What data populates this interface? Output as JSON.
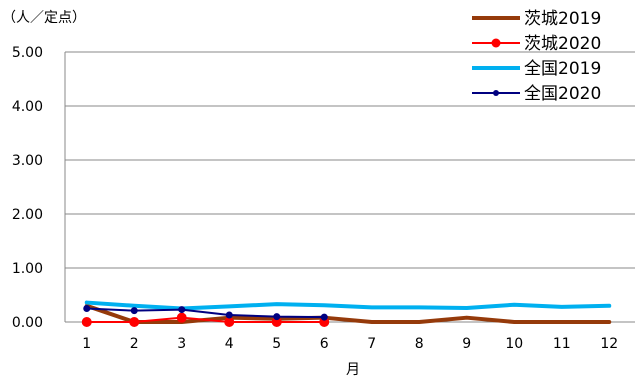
{
  "chart_data": {
    "type": "line",
    "unit_label": "（人／定点）",
    "xlabel": "月",
    "ylabel": "",
    "categories": [
      "1",
      "2",
      "3",
      "4",
      "5",
      "6",
      "7",
      "8",
      "9",
      "10",
      "11",
      "12"
    ],
    "y_ticks": [
      "0.00",
      "1.00",
      "2.00",
      "3.00",
      "4.00",
      "5.00"
    ],
    "ylim": [
      0,
      5
    ],
    "grid": true,
    "legend_position": "top-right",
    "series": [
      {
        "name": "茨城2019",
        "color": "#953A0A",
        "marker": "none",
        "values": [
          0.3,
          0.0,
          0.0,
          0.08,
          0.06,
          0.08,
          0.0,
          0.0,
          0.08,
          0.0,
          0.0,
          0.0
        ]
      },
      {
        "name": "茨城2020",
        "color": "#FF0000",
        "marker": "circle",
        "values": [
          0.0,
          0.0,
          0.08,
          0.0,
          0.0,
          0.0,
          null,
          null,
          null,
          null,
          null,
          null
        ]
      },
      {
        "name": "全国2019",
        "color": "#00B0F0",
        "marker": "none",
        "values": [
          0.36,
          0.3,
          0.25,
          0.29,
          0.33,
          0.31,
          0.27,
          0.27,
          0.26,
          0.32,
          0.28,
          0.3
        ]
      },
      {
        "name": "全国2020",
        "color": "#000080",
        "marker": "circle",
        "values": [
          0.25,
          0.21,
          0.23,
          0.13,
          0.1,
          0.09,
          null,
          null,
          null,
          null,
          null,
          null
        ]
      }
    ]
  }
}
